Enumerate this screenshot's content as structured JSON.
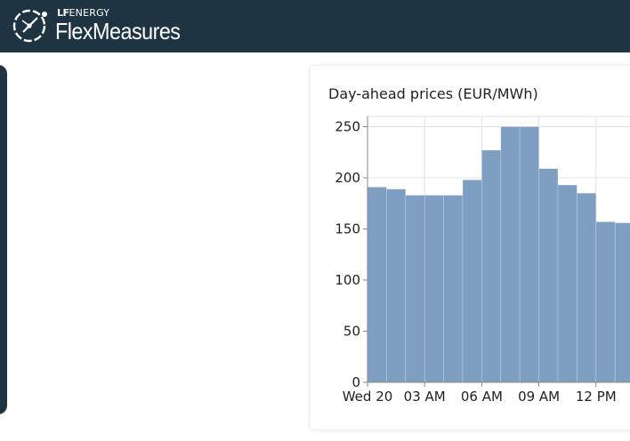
{
  "header": {
    "brand_sub_bold": "LF",
    "brand_sub_rest": "ENERGY",
    "brand_name": "FlexMeasures",
    "logo_icon": "flexmeasures-logo-icon",
    "background_color": "#1e3442"
  },
  "chart_card": {
    "title": "Day-ahead prices (EUR/MWh)"
  },
  "chart_data": {
    "type": "bar",
    "title": "Day-ahead prices (EUR/MWh)",
    "xlabel": "",
    "ylabel": "",
    "x_ticks": [
      "Wed 20",
      "03 AM",
      "06 AM",
      "09 AM",
      "12 PM"
    ],
    "categories": [
      "00:00",
      "01:00",
      "02:00",
      "03:00",
      "04:00",
      "05:00",
      "06:00",
      "07:00",
      "08:00",
      "09:00",
      "10:00",
      "11:00",
      "12:00",
      "13:00"
    ],
    "values": [
      191,
      189,
      183,
      183,
      183,
      198,
      227,
      250,
      250,
      209,
      193,
      185,
      157,
      156
    ],
    "y_ticks": [
      0,
      50,
      100,
      150,
      200,
      250
    ],
    "ylim": [
      0,
      260
    ],
    "grid": true,
    "bar_color": "#7f9fc2"
  }
}
